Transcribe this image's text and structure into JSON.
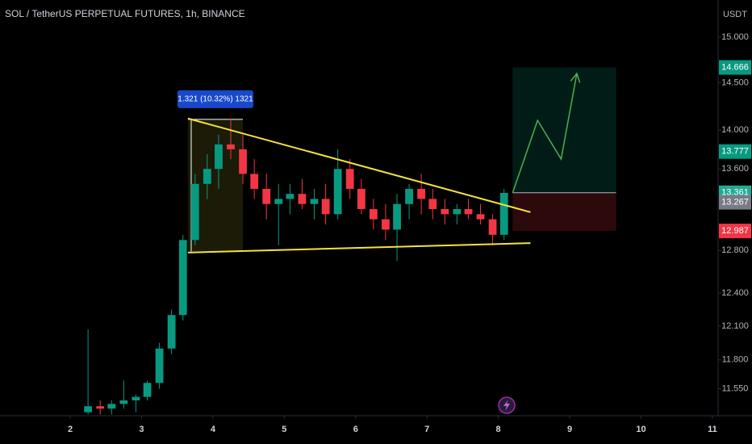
{
  "chart_data": {
    "type": "candlestick",
    "title": "SOL / TetherUS PERPETUAL FUTURES, 1h, BINANCE",
    "y_unit": "USDT",
    "log_scale": true,
    "xlim": [
      1.016,
      11.08
    ],
    "ylim": [
      11.32,
      15.42
    ],
    "xticks": [
      2,
      3,
      4,
      5,
      6,
      7,
      8,
      9,
      10,
      11
    ],
    "yticks": [
      {
        "value": 15,
        "label": "15.000"
      },
      {
        "value": 14.5,
        "label": "14.500"
      },
      {
        "value": 14,
        "label": "14.000"
      },
      {
        "value": 13.6,
        "label": "13.600"
      },
      {
        "value": 12.8,
        "label": "12.800"
      },
      {
        "value": 12.4,
        "label": "12.400"
      },
      {
        "value": 12.1,
        "label": "12.100"
      },
      {
        "value": 11.8,
        "label": "11.800"
      },
      {
        "value": 11.55,
        "label": "11.550"
      }
    ],
    "up_color": "#089981",
    "down_color": "#f23645",
    "x": [
      2.25,
      2.42,
      2.58,
      2.75,
      2.92,
      3.08,
      3.25,
      3.42,
      3.58,
      3.75,
      3.92,
      4.08,
      4.25,
      4.42,
      4.58,
      4.75,
      4.92,
      5.08,
      5.25,
      5.42,
      5.58,
      5.75,
      5.92,
      6.08,
      6.25,
      6.42,
      6.58,
      6.75,
      6.92,
      7.08,
      7.25,
      7.42,
      7.58,
      7.75,
      7.92,
      8.08
    ],
    "open": [
      11.35,
      11.4,
      11.38,
      11.42,
      11.45,
      11.48,
      11.6,
      11.9,
      12.2,
      12.9,
      13.45,
      13.6,
      13.85,
      13.8,
      13.55,
      13.4,
      13.25,
      13.3,
      13.35,
      13.25,
      13.3,
      13.15,
      13.6,
      13.4,
      13.2,
      13.1,
      13.0,
      13.25,
      13.4,
      13.3,
      13.2,
      13.15,
      13.2,
      13.15,
      13.1,
      12.95
    ],
    "high": [
      12.07,
      11.45,
      11.45,
      11.62,
      11.5,
      11.62,
      11.95,
      12.25,
      12.95,
      13.55,
      13.75,
      13.95,
      14.12,
      13.95,
      13.7,
      13.55,
      13.45,
      13.45,
      13.5,
      13.4,
      13.45,
      13.8,
      13.7,
      13.5,
      13.3,
      13.25,
      13.35,
      13.45,
      13.55,
      13.4,
      13.3,
      13.25,
      13.3,
      13.25,
      13.15,
      13.4
    ],
    "low": [
      11.33,
      11.33,
      11.33,
      11.38,
      11.35,
      11.45,
      11.55,
      11.85,
      12.15,
      12.85,
      13.3,
      13.4,
      13.7,
      13.45,
      13.3,
      13.1,
      12.85,
      13.15,
      13.2,
      13.1,
      13.05,
      13.1,
      13.3,
      13.15,
      13.0,
      12.9,
      12.7,
      13.1,
      13.15,
      13.1,
      13.05,
      13.05,
      13.1,
      13.05,
      12.85,
      12.9
    ],
    "close": [
      11.4,
      11.38,
      11.42,
      11.45,
      11.48,
      11.6,
      11.9,
      12.2,
      12.9,
      13.45,
      13.6,
      13.85,
      13.8,
      13.55,
      13.4,
      13.25,
      13.3,
      13.35,
      13.25,
      13.3,
      13.15,
      13.6,
      13.4,
      13.2,
      13.1,
      13.0,
      13.25,
      13.4,
      13.3,
      13.2,
      13.15,
      13.2,
      13.15,
      13.1,
      12.95,
      13.36
    ],
    "trendlines": [
      {
        "color": "#f5e33b",
        "x": [
          3.65,
          8.45
        ],
        "y": [
          14.12,
          13.17
        ]
      },
      {
        "color": "#f5e33b",
        "x": [
          3.65,
          8.45
        ],
        "y": [
          12.78,
          12.87
        ]
      }
    ],
    "measure": {
      "x": [
        3.65,
        4.42
      ],
      "y": [
        12.79,
        14.11
      ],
      "label": "1.321 (10.32%) 1321"
    },
    "position": {
      "x": [
        8.2,
        9.65
      ],
      "target": 14.666,
      "entry": 13.361,
      "stop": 12.987,
      "target_color": "#089981",
      "entry_color": "#22ab94",
      "stop_color": "#f23645"
    },
    "projection": {
      "color": "#4caf50",
      "x": [
        8.2,
        8.55,
        8.88,
        9.1
      ],
      "y": [
        13.36,
        14.1,
        13.7,
        14.6
      ]
    },
    "price_labels": [
      {
        "value": 13.777,
        "color": "#089981"
      },
      {
        "value": 13.267,
        "color": "#787b86"
      }
    ]
  }
}
